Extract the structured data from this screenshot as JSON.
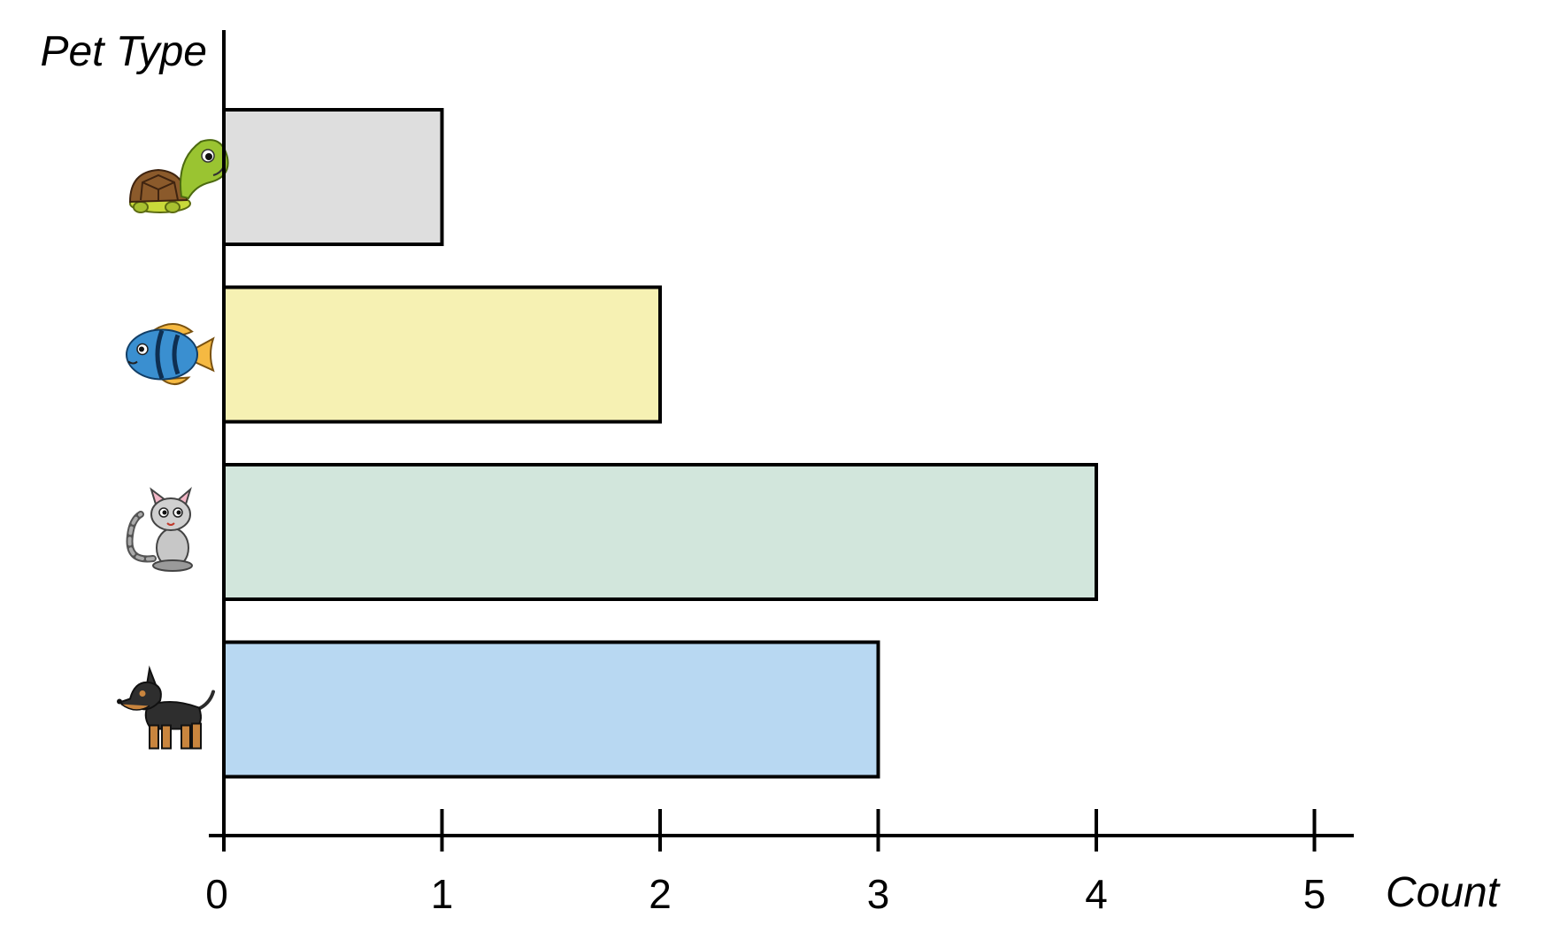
{
  "chart_data": {
    "type": "bar",
    "orientation": "horizontal",
    "ylabel": "Pet Type",
    "xlabel": "Count",
    "categories": [
      "turtle",
      "fish",
      "cat",
      "dog"
    ],
    "category_icons": [
      "turtle-icon",
      "fish-icon",
      "cat-icon",
      "dog-icon"
    ],
    "values": [
      1,
      2,
      4,
      3
    ],
    "bar_colors": [
      "#dedede",
      "#f6f1b3",
      "#d2e6dc",
      "#b8d8f2"
    ],
    "xlim": [
      0,
      5
    ],
    "xticks": [
      "0",
      "1",
      "2",
      "3",
      "4",
      "5"
    ],
    "grid": false,
    "legend": "none"
  }
}
